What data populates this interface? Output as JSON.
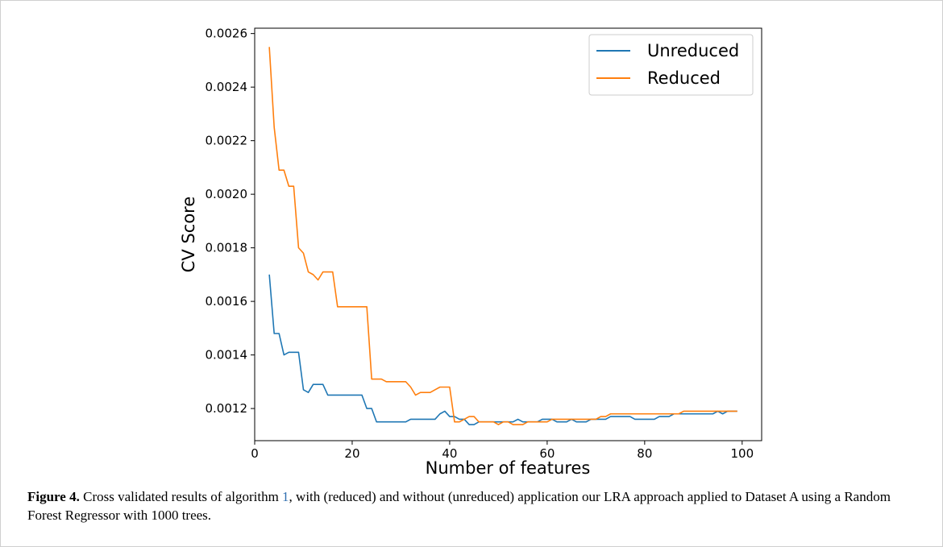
{
  "caption": {
    "label": "Figure 4.",
    "text_before_ref": " Cross validated results of algorithm ",
    "ref": "1",
    "text_after_ref": ", with (reduced) and without (unreduced) application our LRA approach applied to Dataset A using a Random Forest Regressor with 1000 trees."
  },
  "chart_data": {
    "type": "line",
    "title": "",
    "xlabel": "Number of features",
    "ylabel": "CV Score",
    "xlim": [
      0,
      104
    ],
    "ylim": [
      0.00108,
      0.00262
    ],
    "xticks": [
      0,
      20,
      40,
      60,
      80,
      100
    ],
    "xtick_labels": [
      "0",
      "20",
      "40",
      "60",
      "80",
      "100"
    ],
    "yticks": [
      0.0012,
      0.0014,
      0.0016,
      0.0018,
      0.002,
      0.0022,
      0.0024,
      0.0026
    ],
    "ytick_labels": [
      "0.0012",
      "0.0014",
      "0.0016",
      "0.0018",
      "0.0020",
      "0.0022",
      "0.0024",
      "0.0026"
    ],
    "grid": false,
    "legend_position": "top-right",
    "x": [
      3,
      4,
      5,
      6,
      7,
      8,
      9,
      10,
      11,
      12,
      13,
      14,
      15,
      16,
      17,
      18,
      19,
      20,
      21,
      22,
      23,
      24,
      25,
      26,
      27,
      28,
      29,
      30,
      31,
      32,
      33,
      34,
      35,
      36,
      37,
      38,
      39,
      40,
      41,
      42,
      43,
      44,
      45,
      46,
      47,
      48,
      49,
      50,
      51,
      52,
      53,
      54,
      55,
      56,
      57,
      58,
      59,
      60,
      61,
      62,
      63,
      64,
      65,
      66,
      67,
      68,
      69,
      70,
      71,
      72,
      73,
      74,
      75,
      76,
      77,
      78,
      79,
      80,
      81,
      82,
      83,
      84,
      85,
      86,
      87,
      88,
      89,
      90,
      91,
      92,
      93,
      94,
      95,
      96,
      97,
      98,
      99
    ],
    "series": [
      {
        "name": "Unreduced",
        "color": "#1f77b4",
        "values": [
          0.0017,
          0.00148,
          0.00148,
          0.0014,
          0.00141,
          0.00141,
          0.00141,
          0.00127,
          0.00126,
          0.00129,
          0.00129,
          0.00129,
          0.00125,
          0.00125,
          0.00125,
          0.00125,
          0.00125,
          0.00125,
          0.00125,
          0.00125,
          0.0012,
          0.0012,
          0.00115,
          0.00115,
          0.00115,
          0.00115,
          0.00115,
          0.00115,
          0.00115,
          0.00116,
          0.00116,
          0.00116,
          0.00116,
          0.00116,
          0.00116,
          0.00118,
          0.00119,
          0.00117,
          0.00117,
          0.00116,
          0.00116,
          0.00114,
          0.00114,
          0.00115,
          0.00115,
          0.00115,
          0.00115,
          0.00115,
          0.00115,
          0.00115,
          0.00115,
          0.00116,
          0.00115,
          0.00115,
          0.00115,
          0.00115,
          0.00116,
          0.00116,
          0.00116,
          0.00115,
          0.00115,
          0.00115,
          0.00116,
          0.00115,
          0.00115,
          0.00115,
          0.00116,
          0.00116,
          0.00116,
          0.00116,
          0.00117,
          0.00117,
          0.00117,
          0.00117,
          0.00117,
          0.00116,
          0.00116,
          0.00116,
          0.00116,
          0.00116,
          0.00117,
          0.00117,
          0.00117,
          0.00118,
          0.00118,
          0.00118,
          0.00118,
          0.00118,
          0.00118,
          0.00118,
          0.00118,
          0.00118,
          0.00119,
          0.00118,
          0.00119,
          0.00119,
          0.00119
        ]
      },
      {
        "name": "Reduced",
        "color": "#ff7f0e",
        "values": [
          0.00255,
          0.00225,
          0.00209,
          0.00209,
          0.00203,
          0.00203,
          0.0018,
          0.00178,
          0.00171,
          0.0017,
          0.00168,
          0.00171,
          0.00171,
          0.00171,
          0.00158,
          0.00158,
          0.00158,
          0.00158,
          0.00158,
          0.00158,
          0.00158,
          0.00131,
          0.00131,
          0.00131,
          0.0013,
          0.0013,
          0.0013,
          0.0013,
          0.0013,
          0.00128,
          0.00125,
          0.00126,
          0.00126,
          0.00126,
          0.00127,
          0.00128,
          0.00128,
          0.00128,
          0.00115,
          0.00115,
          0.00116,
          0.00117,
          0.00117,
          0.00115,
          0.00115,
          0.00115,
          0.00115,
          0.00114,
          0.00115,
          0.00115,
          0.00114,
          0.00114,
          0.00114,
          0.00115,
          0.00115,
          0.00115,
          0.00115,
          0.00115,
          0.00116,
          0.00116,
          0.00116,
          0.00116,
          0.00116,
          0.00116,
          0.00116,
          0.00116,
          0.00116,
          0.00116,
          0.00117,
          0.00117,
          0.00118,
          0.00118,
          0.00118,
          0.00118,
          0.00118,
          0.00118,
          0.00118,
          0.00118,
          0.00118,
          0.00118,
          0.00118,
          0.00118,
          0.00118,
          0.00118,
          0.00118,
          0.00119,
          0.00119,
          0.00119,
          0.00119,
          0.00119,
          0.00119,
          0.00119,
          0.00119,
          0.00119,
          0.00119,
          0.00119,
          0.00119
        ]
      }
    ]
  }
}
